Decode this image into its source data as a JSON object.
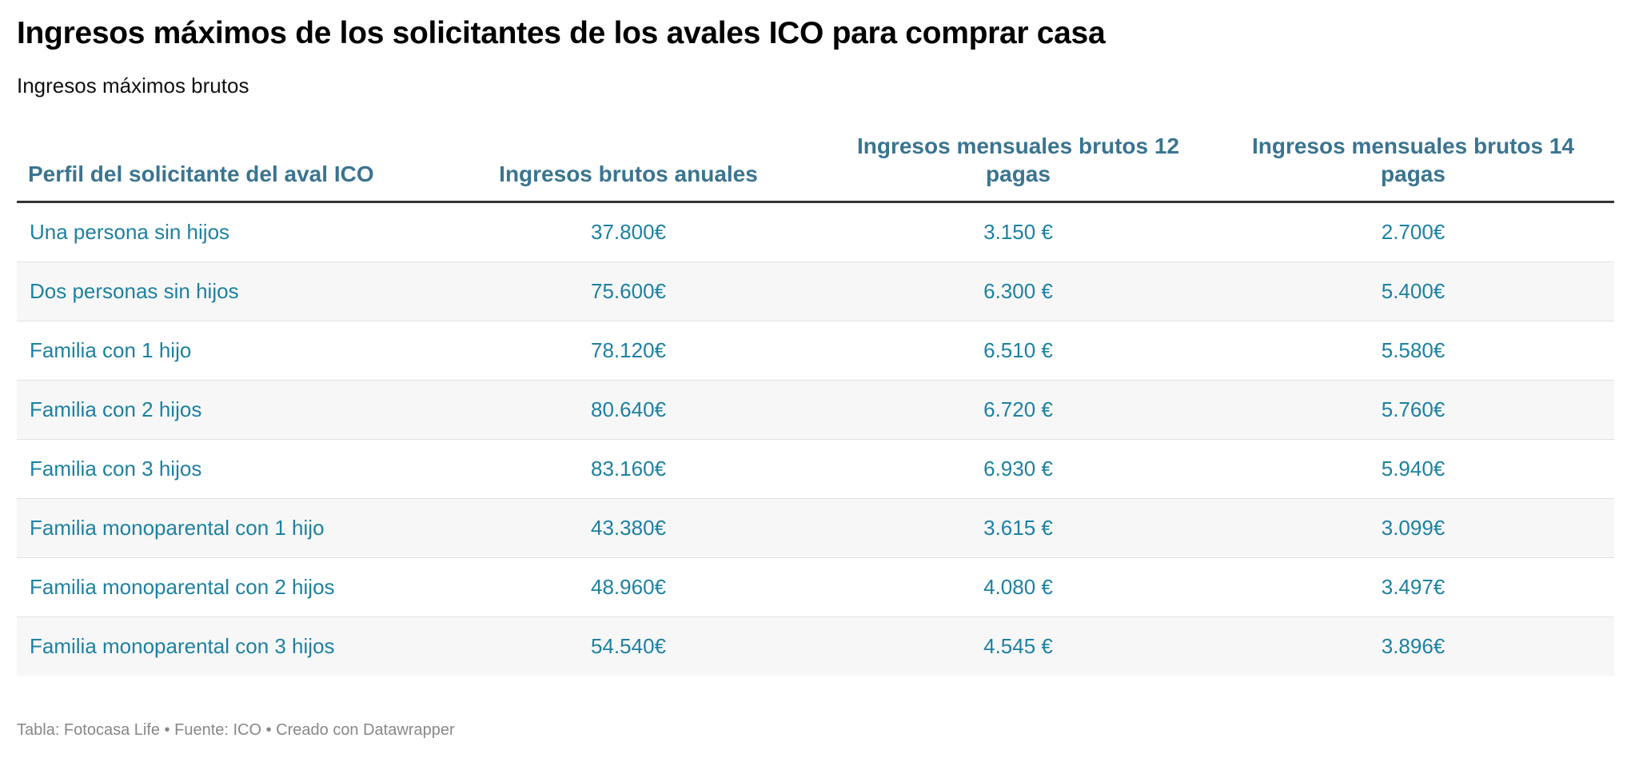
{
  "title": "Ingresos máximos de los solicitantes de los avales ICO para comprar casa",
  "subtitle": "Ingresos máximos brutos",
  "table": {
    "headers": [
      "Perfil del solicitante del aval ICO",
      "Ingresos brutos anuales",
      "Ingresos mensuales brutos 12 pagas",
      "Ingresos mensuales brutos 14 pagas"
    ],
    "rows": [
      [
        "Una persona sin hijos",
        "37.800€",
        "3.150 €",
        "2.700€"
      ],
      [
        "Dos personas sin hijos",
        "75.600€",
        "6.300 €",
        "5.400€"
      ],
      [
        "Familia con 1 hijo",
        "78.120€",
        "6.510 €",
        "5.580€"
      ],
      [
        "Familia con 2 hijos",
        "80.640€",
        "6.720 €",
        "5.760€"
      ],
      [
        "Familia con 3 hijos",
        "83.160€",
        "6.930 €",
        "5.940€"
      ],
      [
        "Familia monoparental con 1 hijo",
        "43.380€",
        "3.615 €",
        "3.099€"
      ],
      [
        "Familia monoparental con 2 hijos",
        "48.960€",
        "4.080 €",
        "3.497€"
      ],
      [
        "Familia monoparental con 3 hijos",
        "54.540€",
        "4.545 €",
        "3.896€"
      ]
    ]
  },
  "footer": "Tabla: Fotocasa Life • Fuente: ICO • Creado con Datawrapper",
  "colors": {
    "header_text": "#3a7490",
    "cell_text": "#1d81a2",
    "stripe": "#f7f7f7"
  }
}
